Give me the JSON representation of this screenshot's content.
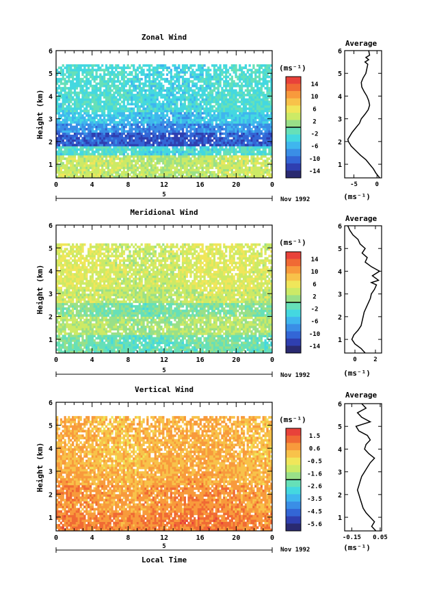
{
  "page": {
    "month_label": "Nov 1992",
    "x_axis_label": "Local Time",
    "y_axis_label": "Height (km)",
    "unit_label": "(ms⁻¹)",
    "day_label": "5"
  },
  "colors": {
    "colorbar_ramp": [
      "#2a2a70",
      "#2f3fb0",
      "#3366d6",
      "#3a8ee6",
      "#3fb6ee",
      "#44d8e0",
      "#66e0b8",
      "#99e088",
      "#ccea66",
      "#f0e65a",
      "#f8c24a",
      "#f89a3c",
      "#f06a34",
      "#e8423a"
    ]
  },
  "chart_data": [
    {
      "type": "heatmap",
      "title": "Zonal Wind",
      "xlabel": "",
      "ylabel": "Height (km)",
      "x_ticks": [
        "0",
        "4",
        "8",
        "12",
        "16",
        "20",
        "0"
      ],
      "y_ticks": [
        "1",
        "2",
        "3",
        "4",
        "5",
        "6"
      ],
      "xlim": [
        0,
        24
      ],
      "ylim": [
        0.4,
        6
      ],
      "colorbar": {
        "label": "(ms⁻¹)",
        "ticks": [
          "14",
          "10",
          "6",
          "2",
          "-2",
          "-6",
          "-10",
          "-14"
        ],
        "range": [
          -16,
          16
        ]
      },
      "average": {
        "title": "Average",
        "xlabel": "(ms⁻¹)",
        "x_ticks": [
          "-5",
          "0"
        ],
        "xlim": [
          -7,
          1
        ],
        "y_ticks": [
          "1",
          "2",
          "3",
          "4",
          "5",
          "6"
        ],
        "profile": [
          [
            0.4,
            0.6
          ],
          [
            0.5,
            0.2
          ],
          [
            0.6,
            -0.2
          ],
          [
            0.8,
            -0.8
          ],
          [
            1.0,
            -1.6
          ],
          [
            1.2,
            -2.4
          ],
          [
            1.4,
            -3.6
          ],
          [
            1.6,
            -4.6
          ],
          [
            1.8,
            -5.6
          ],
          [
            2.0,
            -6.2
          ],
          [
            2.1,
            -6.3
          ],
          [
            2.2,
            -6.0
          ],
          [
            2.4,
            -5.4
          ],
          [
            2.6,
            -4.6
          ],
          [
            2.8,
            -3.8
          ],
          [
            3.0,
            -3.4
          ],
          [
            3.2,
            -2.6
          ],
          [
            3.4,
            -1.9
          ],
          [
            3.6,
            -1.6
          ],
          [
            3.8,
            -1.8
          ],
          [
            4.0,
            -2.2
          ],
          [
            4.2,
            -2.8
          ],
          [
            4.4,
            -3.3
          ],
          [
            4.6,
            -3.4
          ],
          [
            4.8,
            -3.0
          ],
          [
            5.0,
            -2.4
          ],
          [
            5.2,
            -2.2
          ],
          [
            5.4,
            -2.0
          ],
          [
            5.5,
            -2.6
          ],
          [
            5.6,
            -1.8
          ],
          [
            5.7,
            -2.4
          ],
          [
            5.8,
            -1.6
          ],
          [
            6.0,
            -1.8
          ]
        ]
      },
      "field": [
        {
          "z0": 0.4,
          "z1": 1.4,
          "value": 3
        },
        {
          "z0": 1.4,
          "z1": 1.8,
          "value": -3
        },
        {
          "z0": 1.8,
          "z1": 2.4,
          "value": -11
        },
        {
          "z0": 2.4,
          "z1": 2.8,
          "value": -8
        },
        {
          "z0": 2.8,
          "z1": 3.3,
          "value": -5
        },
        {
          "z0": 3.3,
          "z1": 5.4,
          "value": -3
        }
      ]
    },
    {
      "type": "heatmap",
      "title": "Meridional Wind",
      "xlabel": "",
      "ylabel": "Height (km)",
      "x_ticks": [
        "0",
        "4",
        "8",
        "12",
        "16",
        "20",
        "0"
      ],
      "y_ticks": [
        "1",
        "2",
        "3",
        "4",
        "5",
        "6"
      ],
      "xlim": [
        0,
        24
      ],
      "ylim": [
        0.4,
        6
      ],
      "colorbar": {
        "label": "(ms⁻¹)",
        "ticks": [
          "14",
          "10",
          "6",
          "2",
          "-2",
          "-6",
          "-10",
          "-14"
        ],
        "range": [
          -16,
          16
        ]
      },
      "average": {
        "title": "Average",
        "xlabel": "(ms⁻¹)",
        "x_ticks": [
          "0",
          "2"
        ],
        "xlim": [
          -1,
          2.6
        ],
        "y_ticks": [
          "1",
          "2",
          "3",
          "4",
          "5",
          "6"
        ],
        "profile": [
          [
            0.4,
            1.0
          ],
          [
            0.6,
            0.6
          ],
          [
            0.8,
            0.0
          ],
          [
            1.0,
            -0.3
          ],
          [
            1.2,
            -0.1
          ],
          [
            1.4,
            0.3
          ],
          [
            1.6,
            0.6
          ],
          [
            1.8,
            0.7
          ],
          [
            2.0,
            0.8
          ],
          [
            2.2,
            0.9
          ],
          [
            2.4,
            1.1
          ],
          [
            2.6,
            1.3
          ],
          [
            2.8,
            1.5
          ],
          [
            3.0,
            1.6
          ],
          [
            3.2,
            1.9
          ],
          [
            3.4,
            2.1
          ],
          [
            3.5,
            1.6
          ],
          [
            3.6,
            2.3
          ],
          [
            3.8,
            1.7
          ],
          [
            4.0,
            2.4
          ],
          [
            4.2,
            1.6
          ],
          [
            4.4,
            1.0
          ],
          [
            4.6,
            1.2
          ],
          [
            4.8,
            0.7
          ],
          [
            5.0,
            1.0
          ],
          [
            5.2,
            0.5
          ],
          [
            5.4,
            0.3
          ],
          [
            5.6,
            -0.2
          ],
          [
            5.8,
            -0.5
          ],
          [
            6.0,
            -0.7
          ]
        ]
      },
      "field": [
        {
          "z0": 0.4,
          "z1": 1.2,
          "value": -1
        },
        {
          "z0": 1.2,
          "z1": 2.0,
          "value": 2
        },
        {
          "z0": 2.0,
          "z1": 2.6,
          "value": 0
        },
        {
          "z0": 2.6,
          "z1": 3.2,
          "value": 3
        },
        {
          "z0": 3.2,
          "z1": 5.2,
          "value": 4
        }
      ]
    },
    {
      "type": "heatmap",
      "title": "Vertical Wind",
      "xlabel": "Local Time",
      "ylabel": "Height (km)",
      "x_ticks": [
        "0",
        "4",
        "8",
        "12",
        "16",
        "20",
        "0"
      ],
      "y_ticks": [
        "1",
        "2",
        "3",
        "4",
        "5",
        "6"
      ],
      "xlim": [
        0,
        24
      ],
      "ylim": [
        0.4,
        6
      ],
      "colorbar": {
        "label": "(ms⁻¹)",
        "ticks": [
          "1.5",
          "0.6",
          "-0.5",
          "-1.6",
          "-2.6",
          "-3.5",
          "-4.5",
          "-5.6"
        ],
        "range": [
          -6.0,
          2.0
        ]
      },
      "average": {
        "title": "Average",
        "xlabel": "(ms⁻¹)",
        "x_ticks": [
          "-0.15",
          "0.05"
        ],
        "xlim": [
          -0.2,
          0.06
        ],
        "y_ticks": [
          "1",
          "2",
          "3",
          "4",
          "5",
          "6"
        ],
        "profile": [
          [
            0.4,
            0.02
          ],
          [
            0.6,
            -0.01
          ],
          [
            0.8,
            0.01
          ],
          [
            1.0,
            -0.02
          ],
          [
            1.2,
            -0.05
          ],
          [
            1.4,
            -0.07
          ],
          [
            1.6,
            -0.08
          ],
          [
            1.8,
            -0.09
          ],
          [
            2.0,
            -0.1
          ],
          [
            2.2,
            -0.11
          ],
          [
            2.4,
            -0.1
          ],
          [
            2.6,
            -0.09
          ],
          [
            2.8,
            -0.08
          ],
          [
            3.0,
            -0.06
          ],
          [
            3.2,
            -0.04
          ],
          [
            3.4,
            -0.02
          ],
          [
            3.6,
            0.01
          ],
          [
            3.8,
            -0.03
          ],
          [
            4.0,
            -0.06
          ],
          [
            4.2,
            -0.05
          ],
          [
            4.4,
            -0.02
          ],
          [
            4.6,
            -0.04
          ],
          [
            4.8,
            -0.1
          ],
          [
            5.0,
            -0.12
          ],
          [
            5.2,
            -0.02
          ],
          [
            5.4,
            -0.08
          ],
          [
            5.6,
            -0.11
          ],
          [
            5.8,
            -0.05
          ],
          [
            6.0,
            -0.08
          ]
        ]
      },
      "field": [
        {
          "z0": 0.4,
          "z1": 1.2,
          "value": 0.9
        },
        {
          "z0": 1.2,
          "z1": 2.4,
          "value": 0.6
        },
        {
          "z0": 2.4,
          "z1": 3.0,
          "value": 0.3
        },
        {
          "z0": 3.0,
          "z1": 5.4,
          "value": 0.2
        }
      ]
    }
  ]
}
